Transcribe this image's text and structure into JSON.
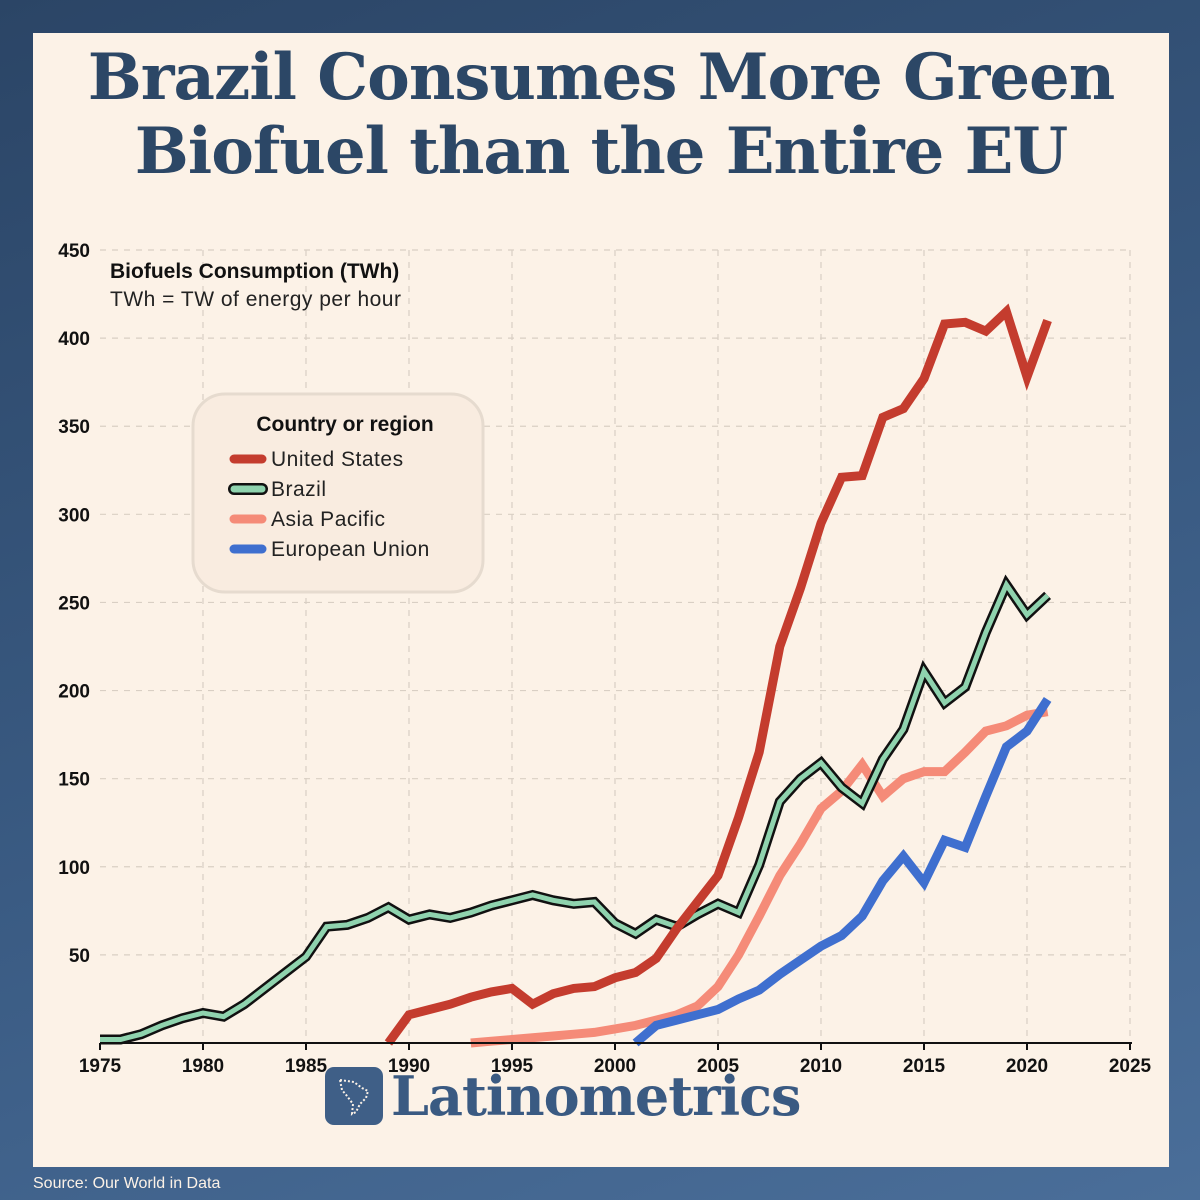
{
  "title": {
    "line1": "Brazil Consumes More Green",
    "line2": "Biofuel than the Entire EU"
  },
  "brand": {
    "name": "Latinometrics"
  },
  "source": "Source: Our World in Data",
  "colors": {
    "background": "#fcf2e7",
    "frame": "#2f4b6e",
    "title": "#2c4766",
    "united_states": "#c43c2e",
    "brazil": "#8fd3ae",
    "asia_pacific": "#f58b78",
    "european_union": "#3f6fcf"
  },
  "chart_data": {
    "type": "line",
    "title": "Biofuels Consumption (TWh)",
    "subtitle": "TWh = TW of energy per hour",
    "xlim": [
      1975,
      2025
    ],
    "ylim": [
      0,
      450
    ],
    "x_ticks": [
      1975,
      1980,
      1985,
      1990,
      1995,
      2000,
      2005,
      2010,
      2015,
      2020,
      2025
    ],
    "y_ticks": [
      50,
      100,
      150,
      200,
      250,
      300,
      350,
      400,
      450
    ],
    "grid": true,
    "legend": {
      "title": "Country or region",
      "placement": "upper-left"
    },
    "series": [
      {
        "name": "United States",
        "color": "#c43c2e",
        "points": [
          [
            1989,
            0
          ],
          [
            1990,
            16
          ],
          [
            1991,
            19
          ],
          [
            1992,
            22
          ],
          [
            1993,
            26
          ],
          [
            1994,
            29
          ],
          [
            1995,
            31
          ],
          [
            1996,
            22
          ],
          [
            1997,
            28
          ],
          [
            1998,
            31
          ],
          [
            1999,
            32
          ],
          [
            2000,
            37
          ],
          [
            2001,
            40
          ],
          [
            2002,
            48
          ],
          [
            2003,
            65
          ],
          [
            2004,
            80
          ],
          [
            2005,
            95
          ],
          [
            2006,
            128
          ],
          [
            2007,
            165
          ],
          [
            2008,
            225
          ],
          [
            2009,
            258
          ],
          [
            2010,
            295
          ],
          [
            2011,
            321
          ],
          [
            2012,
            322
          ],
          [
            2013,
            355
          ],
          [
            2014,
            360
          ],
          [
            2015,
            377
          ],
          [
            2016,
            408
          ],
          [
            2017,
            409
          ],
          [
            2018,
            404
          ],
          [
            2019,
            415
          ],
          [
            2020,
            378
          ],
          [
            2021,
            410
          ]
        ]
      },
      {
        "name": "Brazil",
        "color": "#8fd3ae",
        "points": [
          [
            1975,
            2
          ],
          [
            1976,
            2
          ],
          [
            1977,
            5
          ],
          [
            1978,
            10
          ],
          [
            1979,
            14
          ],
          [
            1980,
            17
          ],
          [
            1981,
            15
          ],
          [
            1982,
            22
          ],
          [
            1983,
            31
          ],
          [
            1984,
            40
          ],
          [
            1985,
            49
          ],
          [
            1986,
            66
          ],
          [
            1987,
            67
          ],
          [
            1988,
            71
          ],
          [
            1989,
            77
          ],
          [
            1990,
            70
          ],
          [
            1991,
            73
          ],
          [
            1992,
            71
          ],
          [
            1993,
            74
          ],
          [
            1994,
            78
          ],
          [
            1995,
            81
          ],
          [
            1996,
            84
          ],
          [
            1997,
            81
          ],
          [
            1998,
            79
          ],
          [
            1999,
            80
          ],
          [
            2000,
            68
          ],
          [
            2001,
            62
          ],
          [
            2002,
            70
          ],
          [
            2003,
            66
          ],
          [
            2004,
            73
          ],
          [
            2005,
            79
          ],
          [
            2006,
            74
          ],
          [
            2007,
            101
          ],
          [
            2008,
            137
          ],
          [
            2009,
            150
          ],
          [
            2010,
            159
          ],
          [
            2011,
            145
          ],
          [
            2012,
            136
          ],
          [
            2013,
            161
          ],
          [
            2014,
            178
          ],
          [
            2015,
            211
          ],
          [
            2016,
            193
          ],
          [
            2017,
            202
          ],
          [
            2018,
            233
          ],
          [
            2019,
            260
          ],
          [
            2020,
            243
          ],
          [
            2021,
            254
          ]
        ]
      },
      {
        "name": "Asia Pacific",
        "color": "#f58b78",
        "points": [
          [
            1993,
            0
          ],
          [
            1994,
            1
          ],
          [
            1995,
            2
          ],
          [
            1996,
            3
          ],
          [
            1997,
            4
          ],
          [
            1998,
            5
          ],
          [
            1999,
            6
          ],
          [
            2000,
            8
          ],
          [
            2001,
            10
          ],
          [
            2002,
            13
          ],
          [
            2003,
            16
          ],
          [
            2004,
            21
          ],
          [
            2005,
            32
          ],
          [
            2006,
            50
          ],
          [
            2007,
            72
          ],
          [
            2008,
            95
          ],
          [
            2009,
            113
          ],
          [
            2010,
            133
          ],
          [
            2011,
            143
          ],
          [
            2012,
            158
          ],
          [
            2013,
            140
          ],
          [
            2014,
            150
          ],
          [
            2015,
            154
          ],
          [
            2016,
            154
          ],
          [
            2017,
            165
          ],
          [
            2018,
            177
          ],
          [
            2019,
            180
          ],
          [
            2020,
            186
          ],
          [
            2021,
            188
          ]
        ]
      },
      {
        "name": "European Union",
        "color": "#3f6fcf",
        "points": [
          [
            2001,
            0
          ],
          [
            2002,
            10
          ],
          [
            2003,
            13
          ],
          [
            2004,
            16
          ],
          [
            2005,
            19
          ],
          [
            2006,
            25
          ],
          [
            2007,
            30
          ],
          [
            2008,
            39
          ],
          [
            2009,
            47
          ],
          [
            2010,
            55
          ],
          [
            2011,
            61
          ],
          [
            2012,
            72
          ],
          [
            2013,
            92
          ],
          [
            2014,
            106
          ],
          [
            2015,
            91
          ],
          [
            2016,
            115
          ],
          [
            2017,
            111
          ],
          [
            2018,
            140
          ],
          [
            2019,
            168
          ],
          [
            2020,
            177
          ],
          [
            2021,
            195
          ]
        ]
      }
    ]
  }
}
